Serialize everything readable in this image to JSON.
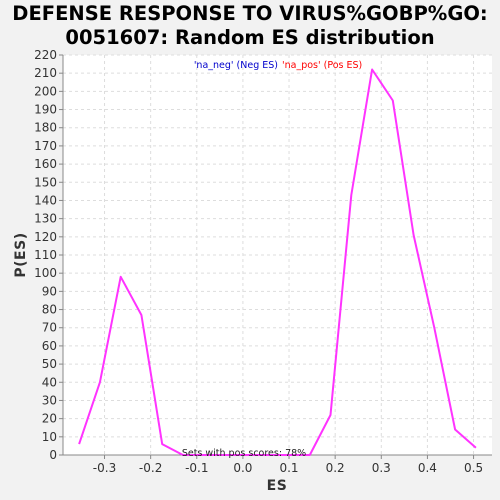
{
  "chart_data": {
    "type": "line",
    "title_line1": "DEFENSE RESPONSE TO VIRUS%GOBP%GO:",
    "title_line2": "0051607: Random ES distribution",
    "xlabel": "ES",
    "ylabel": "P(ES)",
    "xlim": [
      -0.39,
      0.54
    ],
    "ylim": [
      0,
      220
    ],
    "x_ticks": [
      "-0.3",
      "-0.2",
      "-0.1",
      "0.0",
      "0.1",
      "0.2",
      "0.3",
      "0.4",
      "0.5"
    ],
    "y_ticks": [
      "0",
      "10",
      "20",
      "30",
      "40",
      "50",
      "60",
      "70",
      "80",
      "90",
      "100",
      "110",
      "120",
      "130",
      "140",
      "150",
      "160",
      "170",
      "180",
      "190",
      "200",
      "210",
      "220"
    ],
    "grid": true,
    "legend": {
      "placement": "top-center",
      "neg_label": "'na_neg' (Neg ES)",
      "pos_label": "'na_pos' (Pos ES)",
      "neg_color": "#0000cc",
      "pos_color": "#ff0000"
    },
    "annotation": "Sets with pos scores: 78%",
    "series": [
      {
        "color": "#ff33ff",
        "x": [
          -0.355,
          -0.31,
          -0.265,
          -0.22,
          -0.175,
          -0.13,
          0.145,
          0.19,
          0.235,
          0.28,
          0.325,
          0.37,
          0.415,
          0.46,
          0.505
        ],
        "y": [
          6,
          40,
          98,
          77,
          6,
          0,
          0,
          22,
          143,
          212,
          195,
          121,
          70,
          14,
          4
        ]
      }
    ]
  }
}
